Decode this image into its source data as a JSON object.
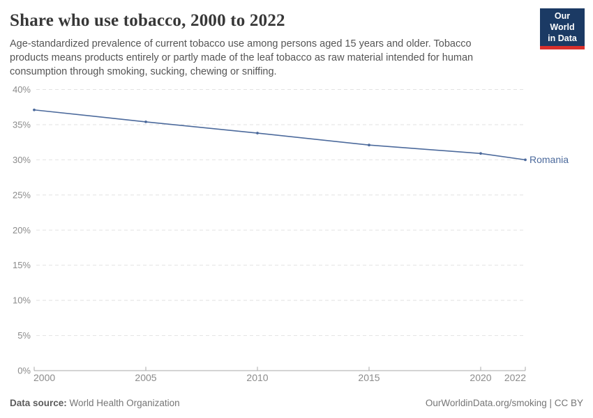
{
  "header": {
    "title": "Share who use tobacco, 2000 to 2022",
    "subtitle": "Age-standardized prevalence of current tobacco use among persons aged 15 years and older. Tobacco products means products entirely or partly made of the leaf tobacco as raw material intended for human consumption through smoking, sucking, chewing or sniffing.",
    "logo": {
      "line1": "Our World",
      "line2": "in Data"
    }
  },
  "chart_data": {
    "type": "line",
    "title": "Share who use tobacco, 2000 to 2022",
    "x": [
      2000,
      2005,
      2010,
      2015,
      2020,
      2022
    ],
    "series": [
      {
        "name": "Romania",
        "values": [
          37.1,
          35.4,
          33.8,
          32.1,
          30.9,
          30.0
        ],
        "color": "#4C6A9C"
      }
    ],
    "xlabel": "",
    "ylabel": "",
    "ylim": [
      0,
      40
    ],
    "yticks": [
      0,
      5,
      10,
      15,
      20,
      25,
      30,
      35,
      40
    ],
    "ytick_suffix": "%",
    "xticks": [
      2000,
      2005,
      2010,
      2015,
      2020,
      2022
    ],
    "grid": "horizontal-dashed",
    "legend_position": "end-of-line"
  },
  "footer": {
    "datasource_label": "Data source:",
    "datasource_value": "World Health Organization",
    "credit": "OurWorldinData.org/smoking | CC BY"
  },
  "colors": {
    "brand_navy": "#1b3a64",
    "brand_red": "#d9302c",
    "series_blue": "#4C6A9C",
    "axis_text": "#8b8b8b",
    "grid_line": "#e2e2e2",
    "axis_line": "#a8a8a8"
  }
}
